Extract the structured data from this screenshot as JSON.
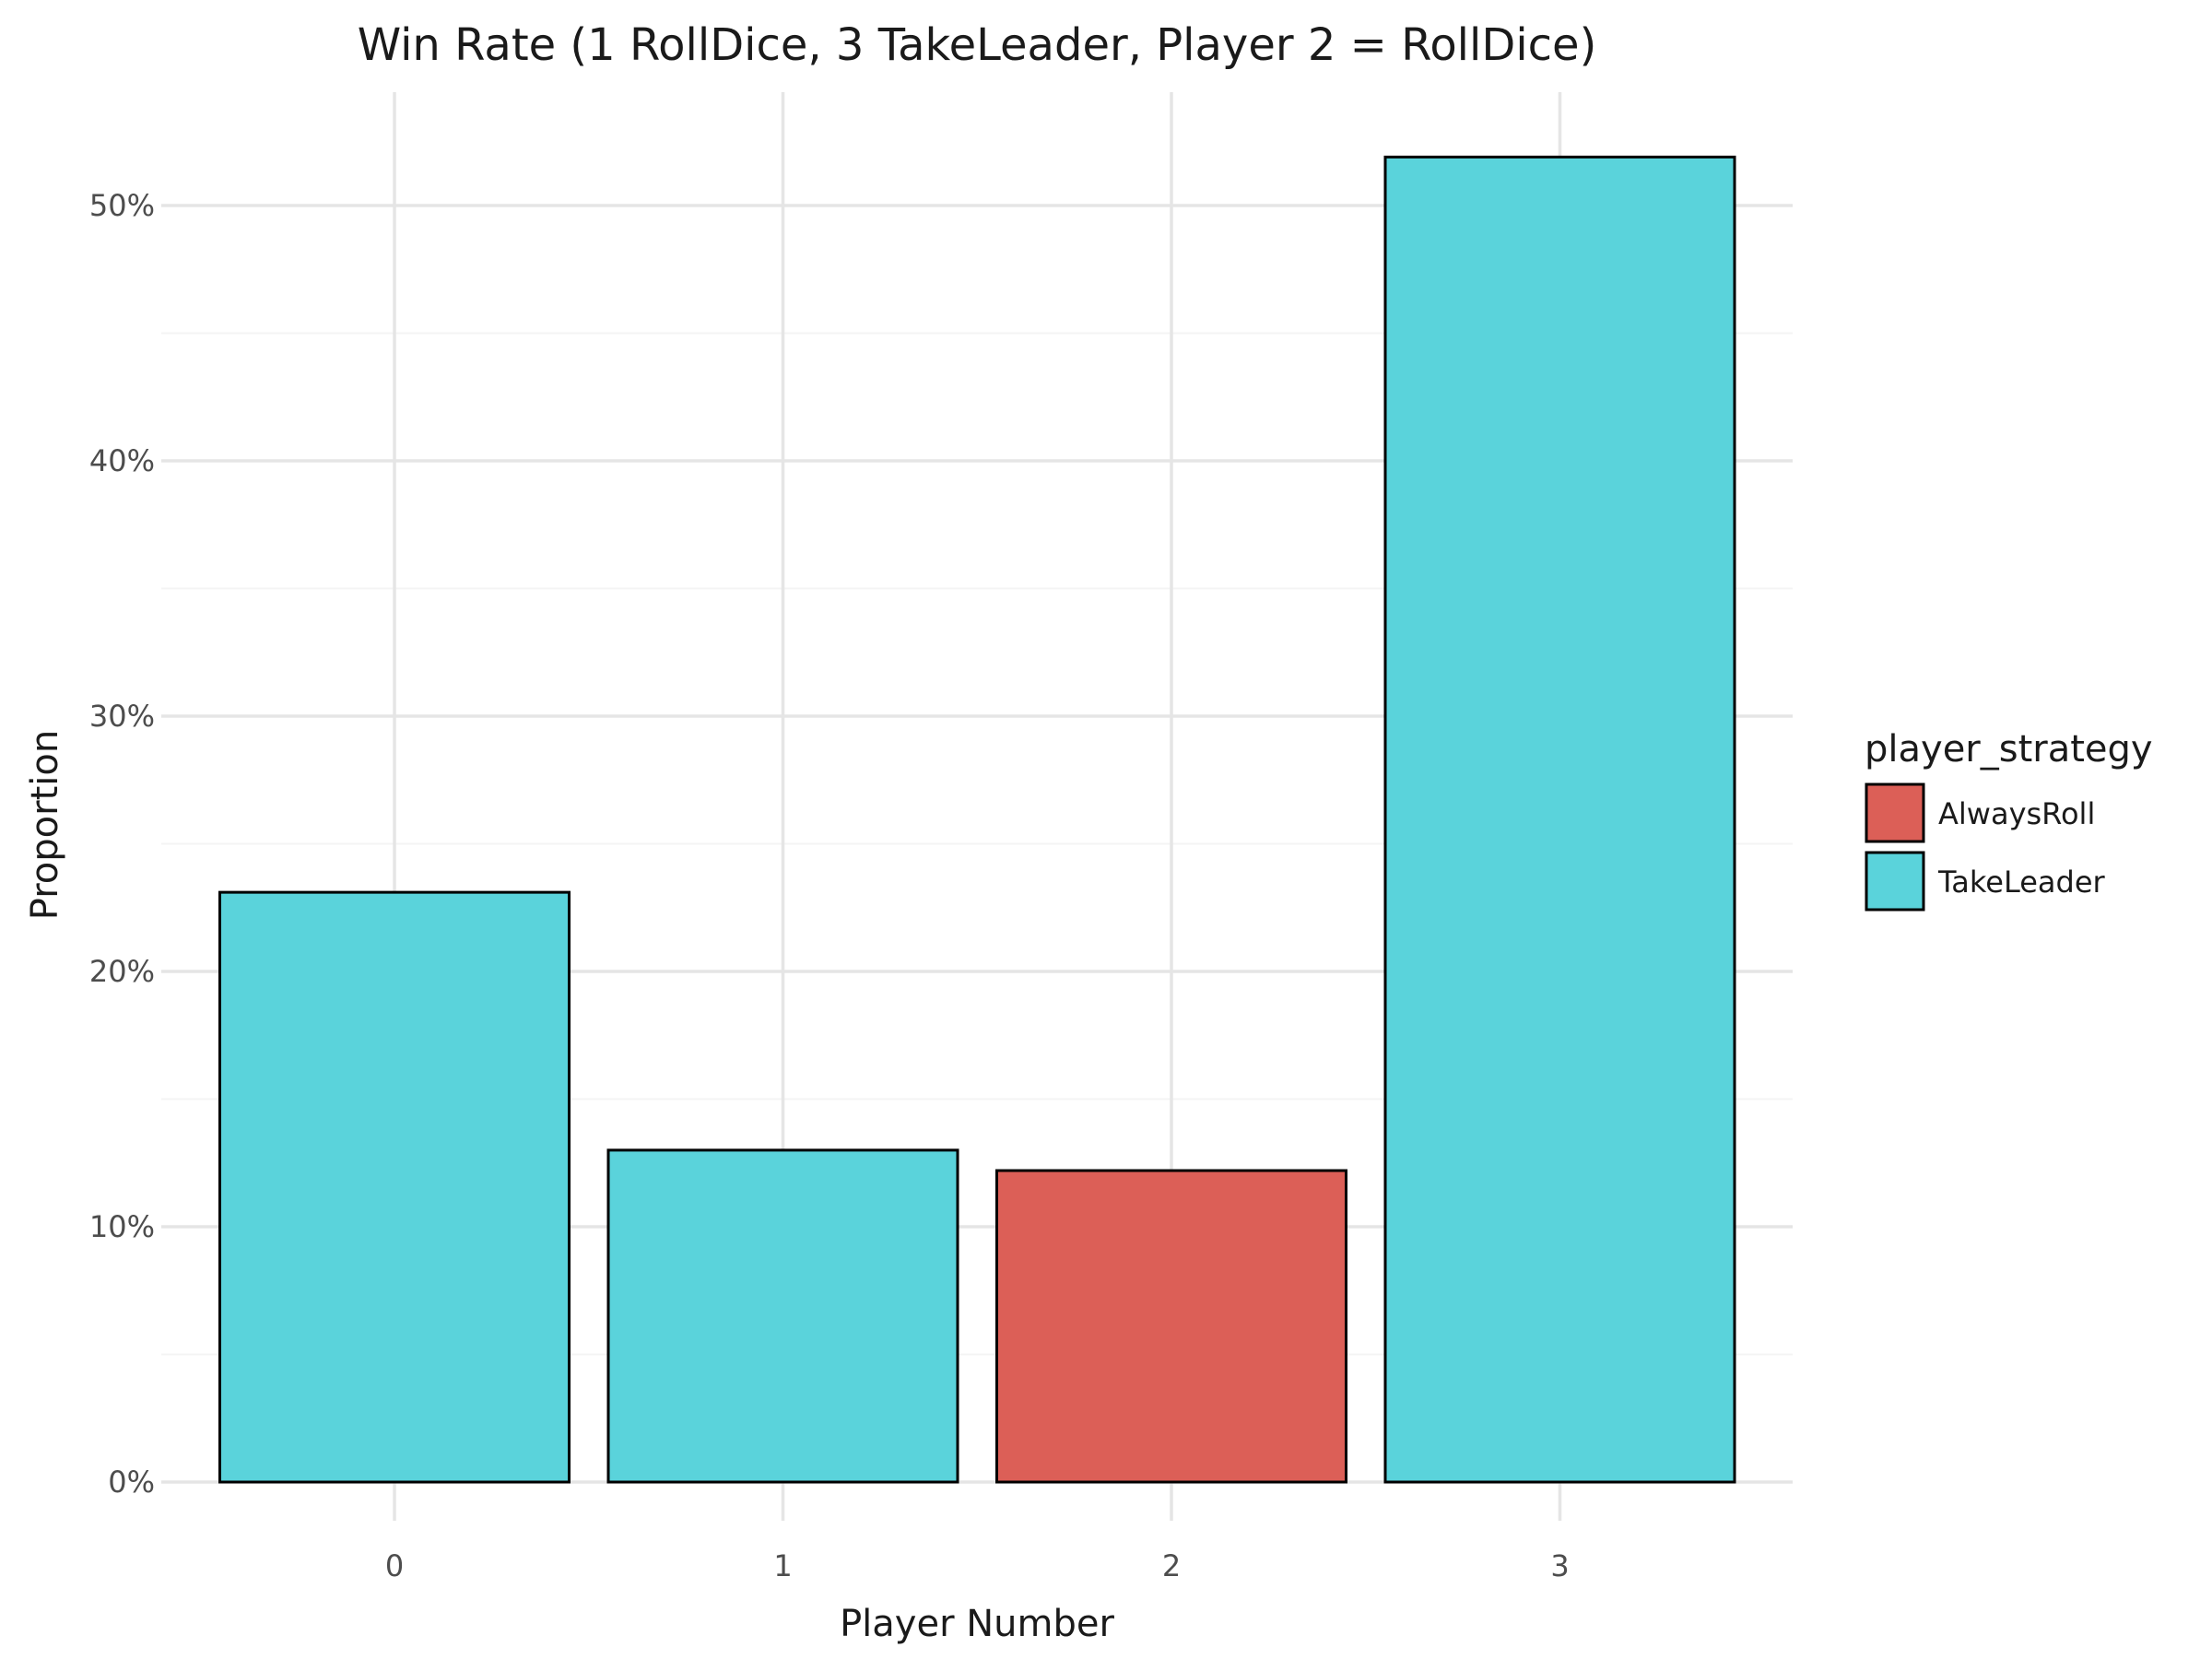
{
  "chart_data": {
    "type": "bar",
    "title": "Win Rate (1 RollDice, 3 TakeLeader, Player 2 = RollDice)",
    "xlabel": "Player Number",
    "ylabel": "Proportion",
    "categories": [
      "0",
      "1",
      "2",
      "3"
    ],
    "values": [
      0.231,
      0.13,
      0.122,
      0.519
    ],
    "bar_strategies": [
      "TakeLeader",
      "TakeLeader",
      "AlwaysRoll",
      "TakeLeader"
    ],
    "ylim": [
      0,
      0.5435
    ],
    "y_ticks": [
      0,
      0.1,
      0.2,
      0.3,
      0.4,
      0.5
    ],
    "y_tick_labels": [
      "0%",
      "10%",
      "20%",
      "30%",
      "40%",
      "50%"
    ],
    "grid": true,
    "legend": {
      "title": "player_strategy",
      "placement": "right",
      "entries": [
        {
          "name": "AlwaysRoll",
          "color": "#dc5f57"
        },
        {
          "name": "TakeLeader",
          "color": "#5ad3db"
        }
      ]
    }
  }
}
